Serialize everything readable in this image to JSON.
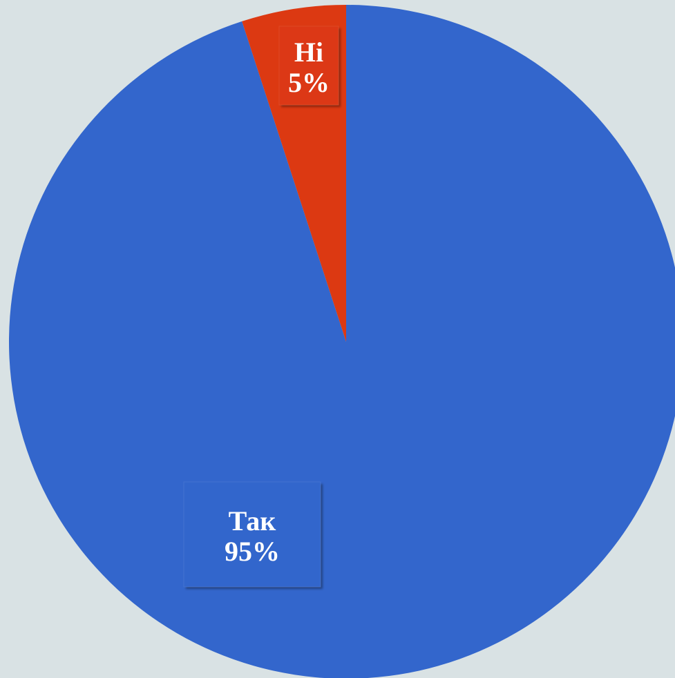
{
  "chart_data": {
    "type": "pie",
    "title": "",
    "slices": [
      {
        "label": "Так",
        "value": 95,
        "value_label": "95%",
        "color": "#3366cc"
      },
      {
        "label": "Ні",
        "value": 5,
        "value_label": "5%",
        "color": "#dc3912"
      }
    ],
    "start_angle_deg": 0,
    "direction": "clockwise",
    "legend": "none",
    "background_color": "#d9e2e4"
  }
}
